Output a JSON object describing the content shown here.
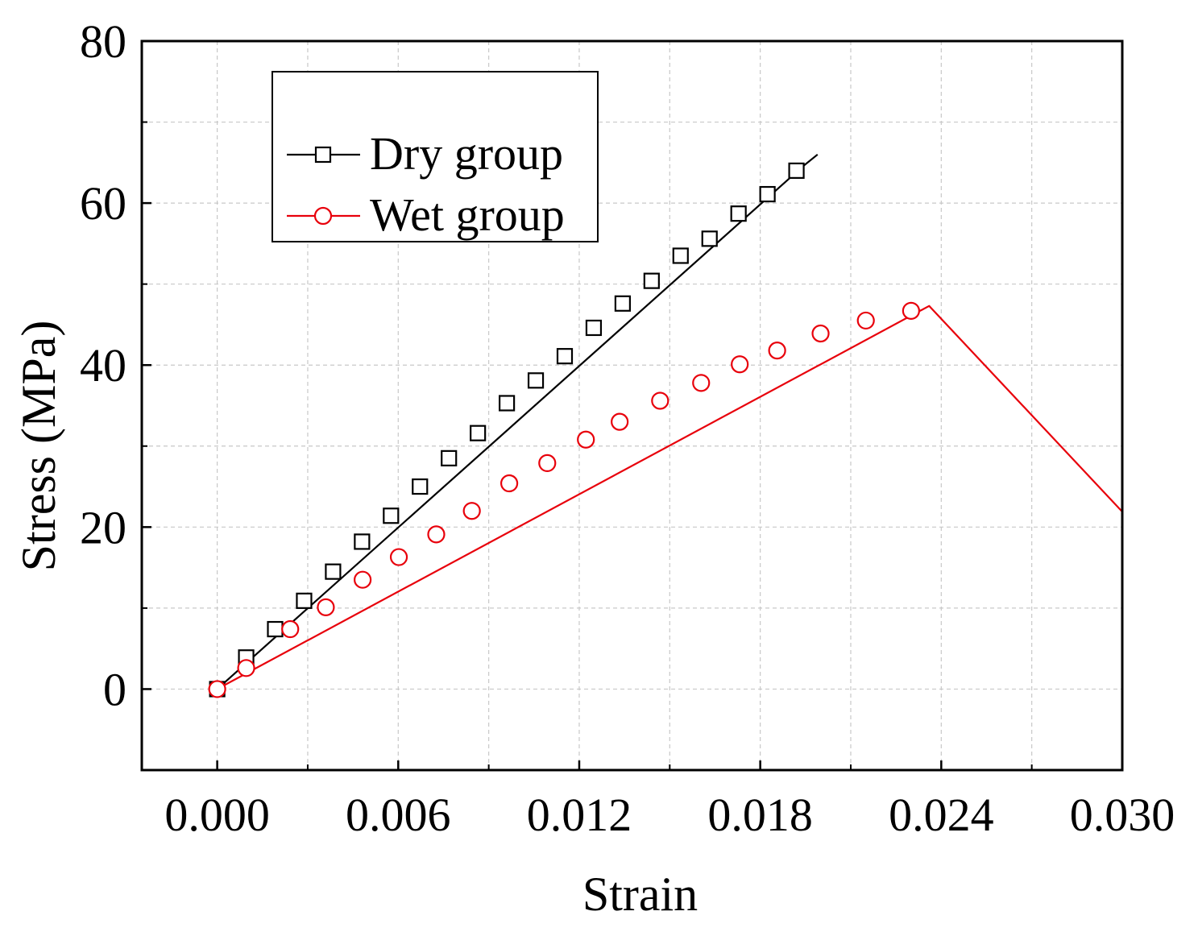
{
  "chart_data": {
    "type": "line",
    "title": "",
    "xlabel": "Strain",
    "ylabel": "Stress (MPa)",
    "xlim": [
      -0.0025,
      0.03
    ],
    "ylim": [
      -10,
      80
    ],
    "xticks": [
      0.0,
      0.006,
      0.012,
      0.018,
      0.024,
      0.03
    ],
    "xtick_labels": [
      "0.000",
      "0.006",
      "0.012",
      "0.018",
      "0.024",
      "0.030"
    ],
    "xminor": [
      0.003,
      0.009,
      0.015,
      0.021,
      0.027
    ],
    "yticks": [
      0,
      20,
      40,
      60,
      80
    ],
    "ytick_labels": [
      "0",
      "20",
      "40",
      "60",
      "80"
    ],
    "yminor": [
      10,
      30,
      50,
      70
    ],
    "grid": true,
    "legend_position": "top-left",
    "series": [
      {
        "name": "Dry group",
        "color": "#000000",
        "marker": "square",
        "line": {
          "x": [
            0.0,
            0.0194,
            0.0199
          ],
          "y": [
            0.0,
            64.5,
            66.0
          ]
        },
        "markers": {
          "x": [
            0.0,
            0.00096,
            0.00192,
            0.00288,
            0.00384,
            0.0048,
            0.00576,
            0.00672,
            0.00768,
            0.00864,
            0.0096,
            0.01056,
            0.01152,
            0.01248,
            0.01344,
            0.0144,
            0.01536,
            0.01632,
            0.01728,
            0.01824,
            0.0192
          ],
          "y": [
            0.0,
            3.9,
            7.4,
            10.9,
            14.5,
            18.2,
            21.4,
            25.0,
            28.5,
            31.6,
            35.3,
            38.1,
            41.1,
            44.6,
            47.6,
            50.4,
            53.5,
            55.6,
            58.7,
            61.1,
            64.0
          ]
        }
      },
      {
        "name": "Wet group",
        "color": "#e8000b",
        "marker": "circle",
        "line": {
          "x": [
            0.0,
            0.0236,
            0.03
          ],
          "y": [
            0.0,
            47.3,
            21.9
          ]
        },
        "markers": {
          "x": [
            0.0,
            0.00096,
            0.00242,
            0.0036,
            0.00482,
            0.00602,
            0.00726,
            0.00844,
            0.00968,
            0.01094,
            0.01222,
            0.01334,
            0.01468,
            0.01604,
            0.01732,
            0.01856,
            0.02,
            0.0215,
            0.023
          ],
          "y": [
            0.0,
            2.6,
            7.4,
            10.1,
            13.5,
            16.3,
            19.1,
            22.0,
            25.4,
            27.9,
            30.8,
            33.0,
            35.6,
            37.8,
            40.1,
            41.8,
            43.9,
            45.5,
            46.7
          ]
        }
      }
    ]
  }
}
